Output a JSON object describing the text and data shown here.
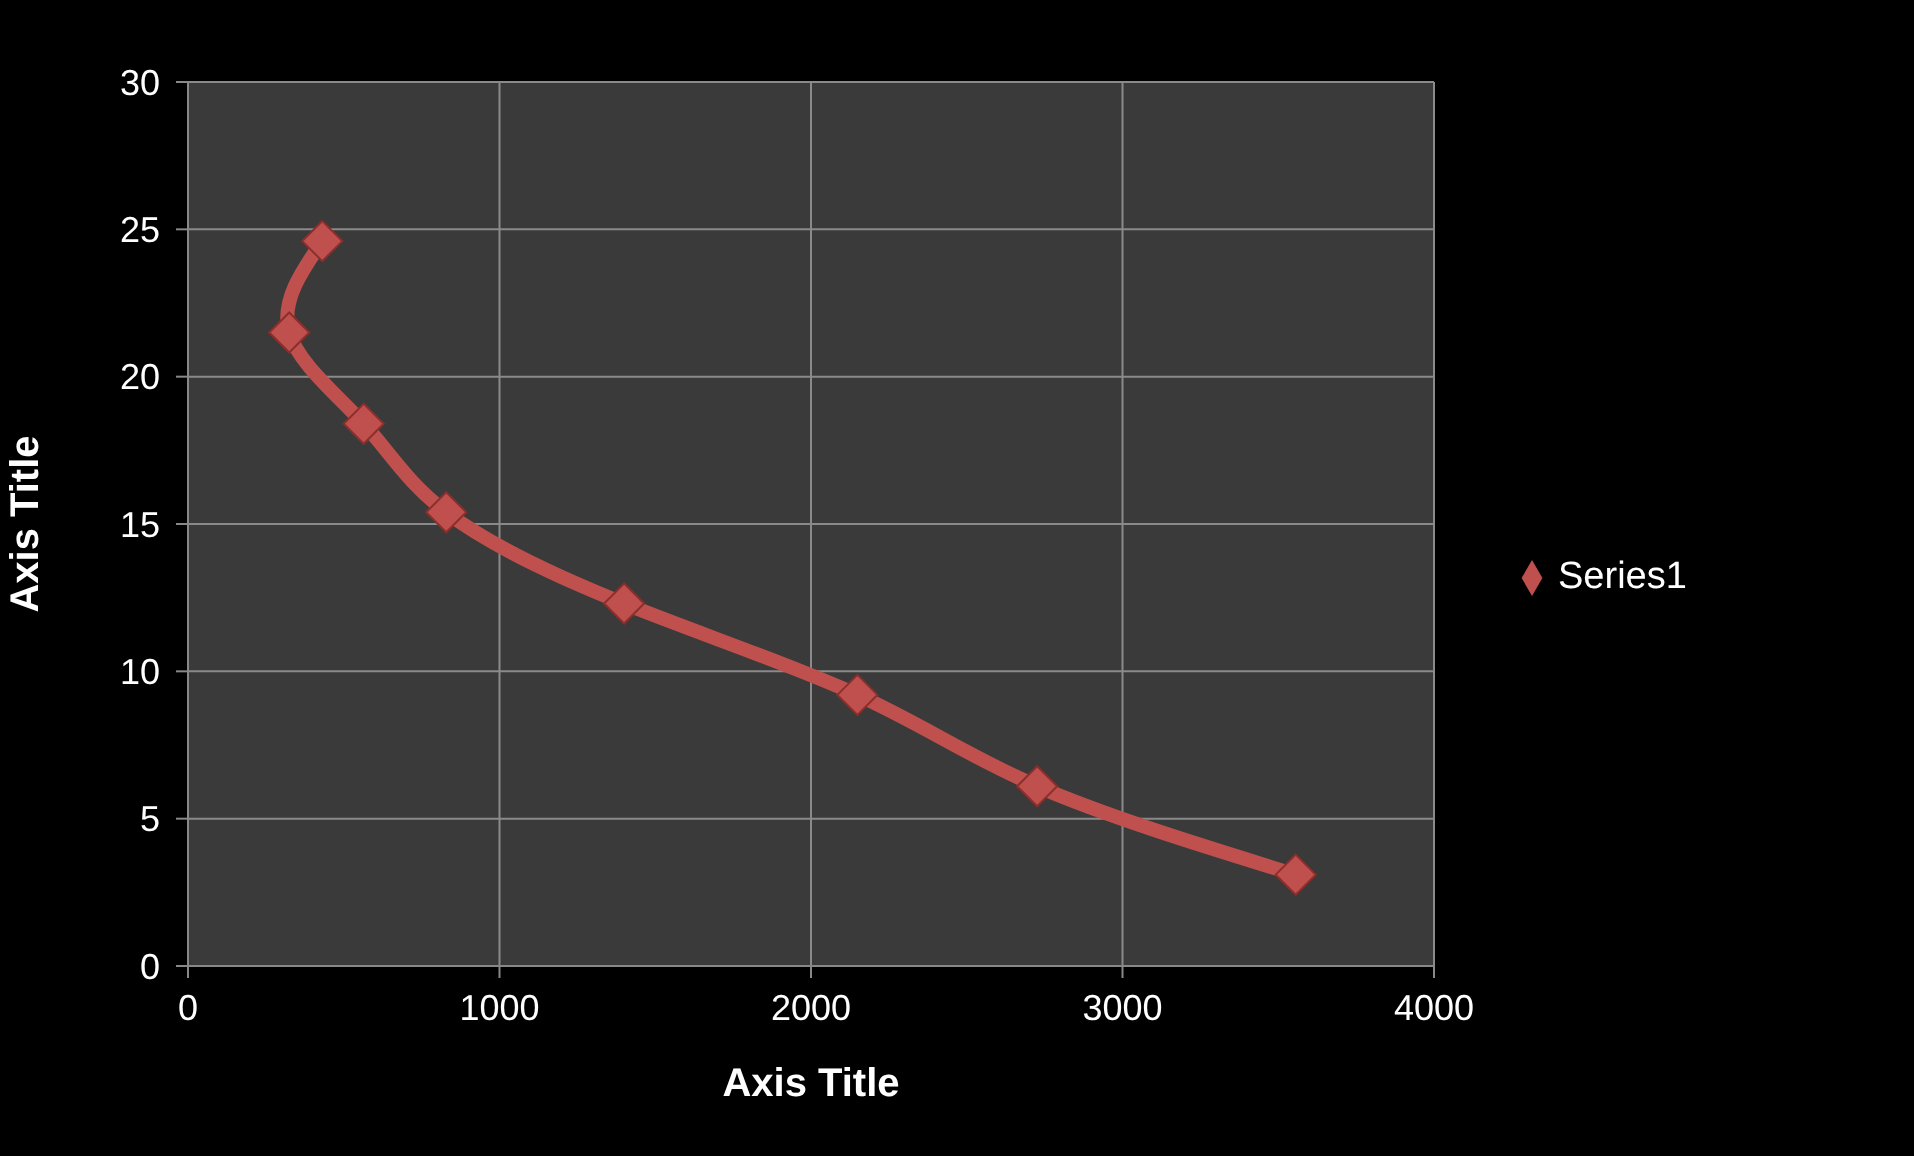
{
  "chart_data": {
    "type": "line",
    "xlabel": "Axis Title",
    "ylabel": "Axis Title",
    "x": [
      431,
      325,
      564,
      829,
      1400,
      2149,
      2726,
      3556
    ],
    "series": [
      {
        "name": "Series1",
        "color": "#c0504d",
        "values": [
          24.6,
          21.5,
          18.4,
          15.4,
          12.3,
          9.2,
          6.1,
          3.1
        ]
      }
    ],
    "xlim": [
      0,
      4000
    ],
    "xticks": [
      0,
      1000,
      2000,
      3000,
      4000
    ],
    "ylim": [
      0,
      30
    ],
    "yticks": [
      0,
      5,
      10,
      15,
      20,
      25,
      30
    ],
    "grid": true,
    "legend": "right",
    "marker": "diamond",
    "line_style": "solid"
  }
}
